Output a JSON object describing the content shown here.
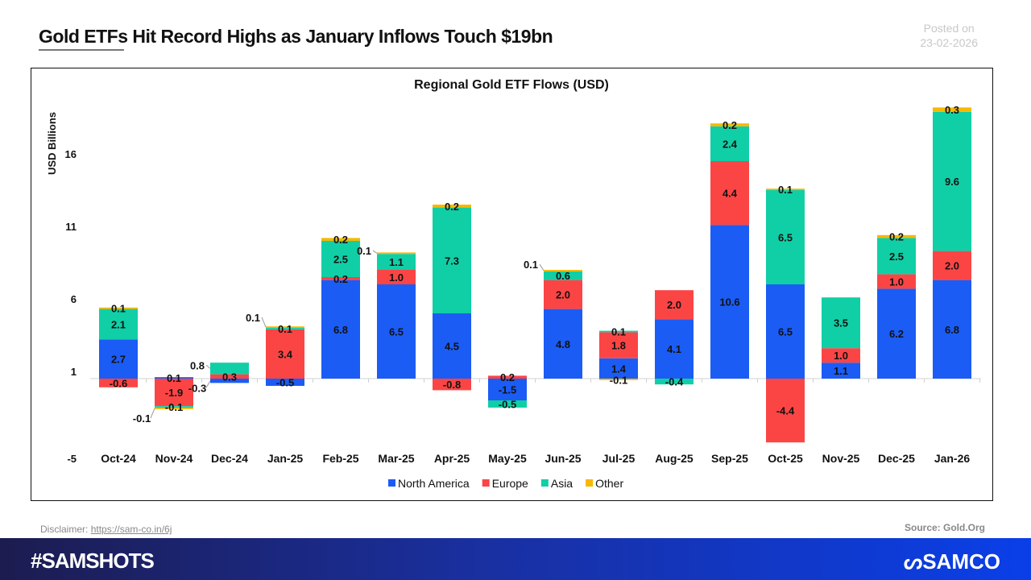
{
  "header": {
    "title": "Gold ETFs Hit Record Highs as January Inflows Touch $19bn",
    "posted_label": "Posted on",
    "posted_date": "23-02-2026"
  },
  "footer": {
    "disclaimer_label": "Disclaimer:",
    "disclaimer_link": "https://sam-co.in/6j",
    "source": "Source: Gold.Org",
    "hashtag": "#SAMSHOTS",
    "logo": "SAMCO"
  },
  "chart_data": {
    "type": "bar",
    "stacked": true,
    "title": "Regional Gold ETF Flows (USD)",
    "ylabel": "USD Billions",
    "xlabel": "",
    "ylim": [
      -5,
      18.5
    ],
    "yticks": [
      -5,
      1,
      6,
      11,
      16
    ],
    "legend": "bottom",
    "categories": [
      "Oct-24",
      "Nov-24",
      "Dec-24",
      "Jan-25",
      "Feb-25",
      "Mar-25",
      "Apr-25",
      "May-25",
      "Jun-25",
      "Jul-25",
      "Aug-25",
      "Sep-25",
      "Oct-25",
      "Nov-25",
      "Dec-25",
      "Jan-26"
    ],
    "series": [
      {
        "name": "North America",
        "color": "#1b5cf5",
        "values": [
          2.7,
          0.1,
          -0.3,
          -0.5,
          6.8,
          6.5,
          4.5,
          -1.5,
          4.8,
          1.4,
          4.1,
          10.6,
          6.5,
          1.1,
          6.2,
          6.8
        ]
      },
      {
        "name": "Europe",
        "color": "#fb4545",
        "values": [
          -0.6,
          -1.9,
          0.3,
          3.4,
          0.2,
          1.0,
          -0.8,
          0.2,
          2.0,
          1.8,
          2.0,
          4.4,
          -4.4,
          1.0,
          1.0,
          2.0
        ]
      },
      {
        "name": "Asia",
        "color": "#10cfa6",
        "values": [
          2.1,
          -0.1,
          0.8,
          0.1,
          2.5,
          1.1,
          7.3,
          -0.5,
          0.6,
          0.1,
          -0.4,
          2.4,
          6.5,
          3.5,
          2.5,
          9.6
        ]
      },
      {
        "name": "Other",
        "color": "#f6b800",
        "values": [
          0.1,
          -0.1,
          0,
          0.1,
          0.2,
          0.1,
          0.2,
          0,
          0.1,
          -0.1,
          0,
          0.2,
          0.1,
          0,
          0.2,
          0.3
        ]
      }
    ]
  }
}
